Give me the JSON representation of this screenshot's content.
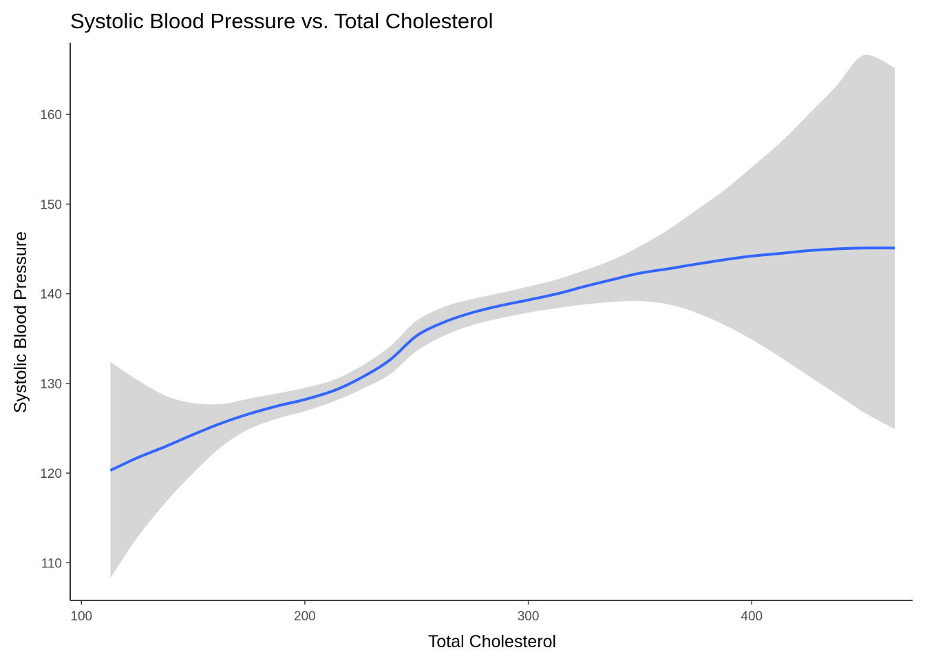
{
  "chart_data": {
    "type": "line",
    "title": "Systolic Blood Pressure vs. Total Cholesterol",
    "xlabel": "Total Cholesterol",
    "ylabel": "Systolic Blood Pressure",
    "xlim": [
      95,
      472
    ],
    "ylim": [
      105.8,
      168
    ],
    "x_ticks": [
      100,
      200,
      300,
      400
    ],
    "y_ticks": [
      110,
      120,
      130,
      140,
      150,
      160
    ],
    "grid": false,
    "legend": "none",
    "colors": {
      "line": "#3366FF",
      "ribbon": "#D6D6D6",
      "axis": "#000000",
      "tick_text": "#4D4D4D"
    },
    "series": [
      {
        "x": [
          113,
          125,
          138,
          150,
          163,
          175,
          188,
          200,
          213,
          225,
          238,
          250,
          263,
          275,
          288,
          300,
          313,
          325,
          338,
          350,
          363,
          375,
          388,
          400,
          413,
          425,
          438,
          450,
          464
        ],
        "y": [
          120.3,
          121.7,
          123.0,
          124.3,
          125.6,
          126.6,
          127.5,
          128.2,
          129.2,
          130.6,
          132.6,
          135.3,
          136.9,
          137.9,
          138.7,
          139.3,
          140.0,
          140.8,
          141.6,
          142.3,
          142.8,
          143.3,
          143.8,
          144.2,
          144.5,
          144.8,
          145.0,
          145.1,
          145.1
        ],
        "lower": [
          108.3,
          112.8,
          116.8,
          120.0,
          123.0,
          124.9,
          126.1,
          126.9,
          128.0,
          129.3,
          131.0,
          133.6,
          135.4,
          136.5,
          137.3,
          137.9,
          138.4,
          138.8,
          139.1,
          139.2,
          138.8,
          137.9,
          136.5,
          134.9,
          132.9,
          130.9,
          128.8,
          126.8,
          124.9
        ],
        "upper": [
          132.4,
          130.4,
          128.6,
          127.8,
          127.7,
          128.3,
          128.9,
          129.5,
          130.4,
          131.9,
          134.1,
          137.0,
          138.6,
          139.4,
          140.1,
          140.8,
          141.6,
          142.6,
          143.8,
          145.3,
          147.2,
          149.3,
          151.6,
          154.1,
          156.9,
          159.9,
          163.2,
          166.6,
          165.2
        ]
      }
    ]
  }
}
